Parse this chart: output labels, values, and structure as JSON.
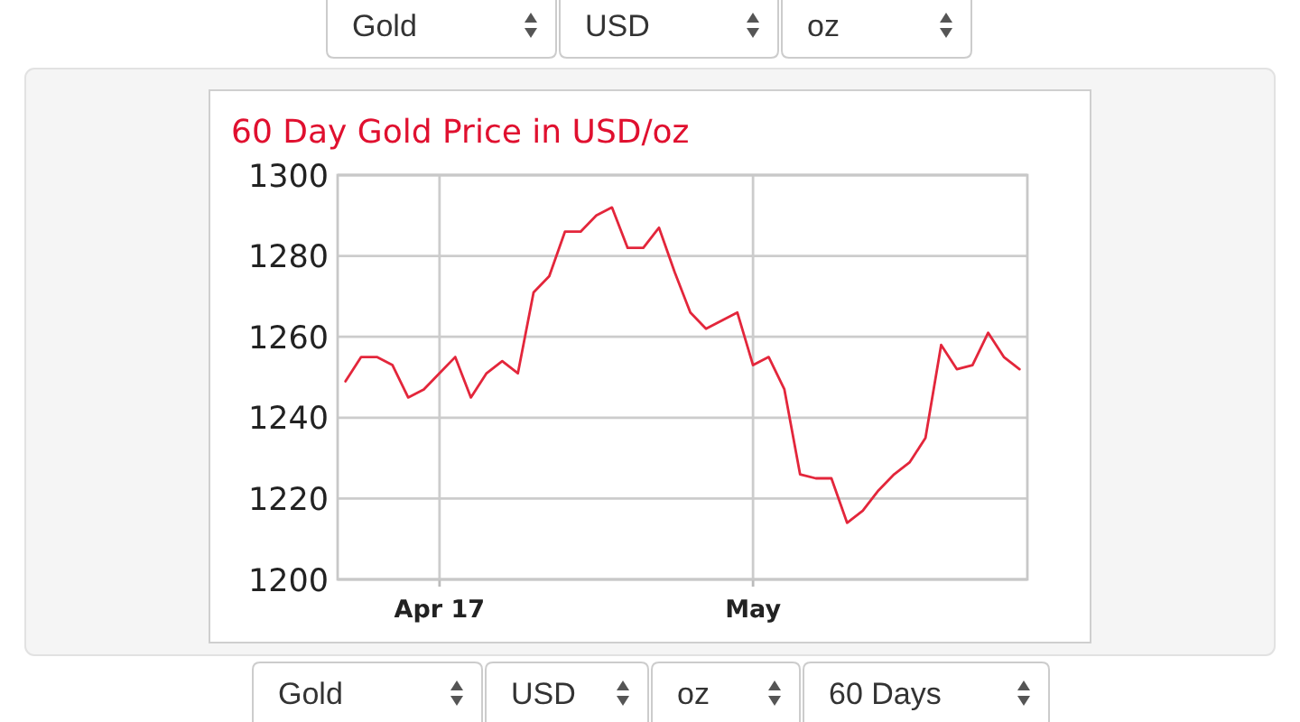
{
  "chart_data": {
    "type": "line",
    "title": "60 Day Gold Price in USD/oz",
    "categories": [
      null,
      null,
      null,
      null,
      null,
      null,
      "Apr 17",
      null,
      null,
      null,
      null,
      null,
      null,
      null,
      null,
      null,
      null,
      null,
      null,
      null,
      null,
      null,
      null,
      null,
      null,
      null,
      "May",
      null,
      null,
      null,
      null,
      null,
      null,
      null,
      null,
      null,
      null,
      null,
      null,
      null,
      null,
      null,
      null,
      null
    ],
    "series": [
      {
        "color": "#e3263b",
        "values": [
          1249,
          1255,
          1255,
          1253,
          1245,
          1247,
          1251,
          1255,
          1245,
          1251,
          1254,
          1251,
          1271,
          1275,
          1286,
          1286,
          1290,
          1292,
          1282,
          1282,
          1287,
          1276,
          1266,
          1262,
          1264,
          1266,
          1253,
          1255,
          1247,
          1226,
          1225,
          1225,
          1214,
          1217,
          1222,
          1226,
          1229,
          1235,
          1258,
          1252,
          1253,
          1261,
          1255,
          1252
        ]
      }
    ],
    "ylim": [
      1200,
      1300
    ],
    "yticks": [
      1200,
      1220,
      1240,
      1260,
      1280,
      1300
    ],
    "grid": true,
    "annotations": [
      "Gold",
      "USD",
      "oz",
      "Gold",
      "USD",
      "oz",
      "60 Days"
    ]
  }
}
